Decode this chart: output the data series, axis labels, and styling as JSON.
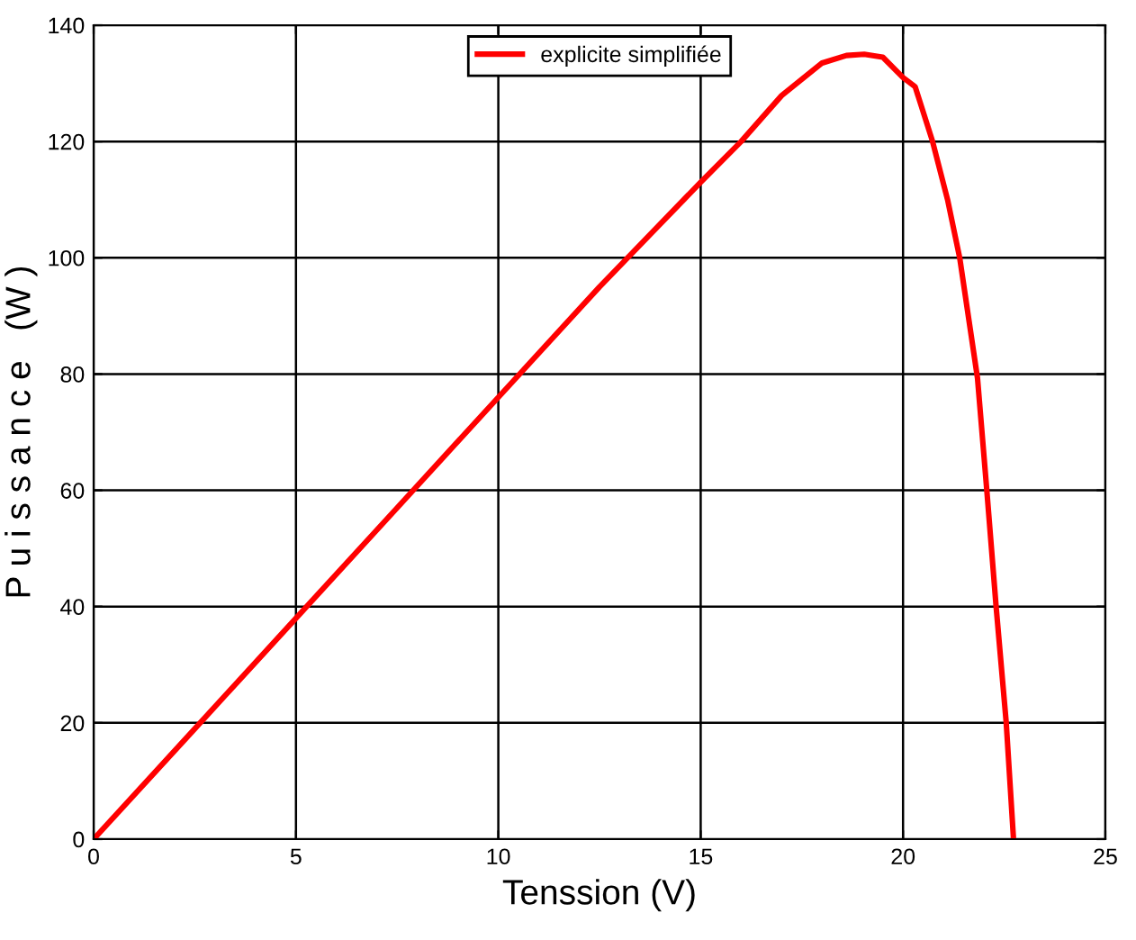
{
  "chart_data": {
    "type": "line",
    "xlabel": "Tenssion (V)",
    "ylabel": "P u i s s a n c e   (W )",
    "series": [
      {
        "name": "explicite simplifiée",
        "color": "#ff0000",
        "x": [
          0,
          2.5,
          5,
          7.5,
          10,
          12.5,
          15,
          16,
          17,
          18,
          18.6,
          19.04,
          19.5,
          20,
          20.3,
          20.73,
          21.1,
          21.4,
          21.84,
          22.07,
          22.3,
          22.55,
          22.73
        ],
        "values": [
          0,
          19,
          38,
          57,
          76,
          95,
          113,
          120,
          127.9,
          133.5,
          134.8,
          135,
          134.5,
          131,
          129.4,
          120,
          110,
          100,
          79.3,
          60,
          40,
          20,
          0
        ]
      }
    ],
    "xlim": [
      0,
      25
    ],
    "ylim": [
      0,
      140
    ],
    "xticks": [
      0,
      5,
      10,
      15,
      20,
      25
    ],
    "yticks": [
      0,
      20,
      40,
      60,
      80,
      100,
      120,
      140
    ],
    "grid": true,
    "legend": "top",
    "marker": "none",
    "line_style": "solid"
  }
}
